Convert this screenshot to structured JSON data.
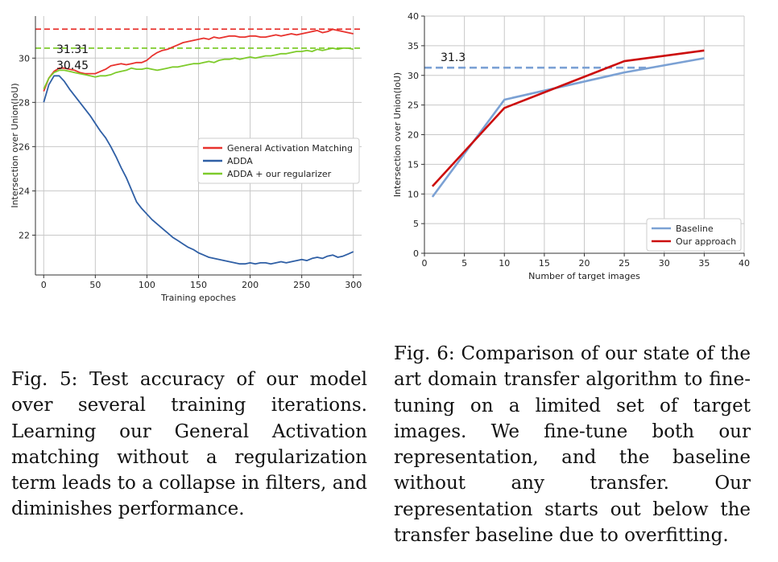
{
  "figure5": {
    "chart_data": {
      "type": "line",
      "title": "",
      "xlabel": "Training epoches",
      "ylabel": "Intersection over Union(IoU)",
      "xlim": [
        -8,
        308
      ],
      "ylim": [
        20.2,
        31.9
      ],
      "xticks": [
        0,
        50,
        100,
        150,
        200,
        250,
        300
      ],
      "yticks": [
        22,
        24,
        26,
        28,
        30
      ],
      "grid": true,
      "legend_position": "center-right",
      "series": [
        {
          "name": "General Activation Matching",
          "color": "#e8322d",
          "x": [
            0,
            5,
            10,
            15,
            20,
            25,
            30,
            35,
            40,
            45,
            50,
            55,
            60,
            65,
            70,
            75,
            80,
            85,
            90,
            95,
            100,
            105,
            110,
            115,
            120,
            125,
            130,
            135,
            140,
            145,
            150,
            155,
            160,
            165,
            170,
            175,
            180,
            185,
            190,
            195,
            200,
            205,
            210,
            215,
            220,
            225,
            230,
            235,
            240,
            245,
            250,
            255,
            260,
            265,
            270,
            275,
            280,
            285,
            290,
            295,
            300
          ],
          "values": [
            28.5,
            29.1,
            29.4,
            29.55,
            29.55,
            29.5,
            29.45,
            29.35,
            29.3,
            29.3,
            29.3,
            29.4,
            29.5,
            29.65,
            29.7,
            29.75,
            29.7,
            29.75,
            29.8,
            29.8,
            29.9,
            30.1,
            30.25,
            30.35,
            30.4,
            30.5,
            30.6,
            30.7,
            30.75,
            30.8,
            30.85,
            30.9,
            30.85,
            30.95,
            30.9,
            30.95,
            31.0,
            31.0,
            30.95,
            30.95,
            31.0,
            31.0,
            30.95,
            30.95,
            31.0,
            31.05,
            31.0,
            31.05,
            31.1,
            31.05,
            31.1,
            31.15,
            31.2,
            31.25,
            31.15,
            31.2,
            31.3,
            31.25,
            31.2,
            31.15,
            31.1
          ]
        },
        {
          "name": "ADDA",
          "color": "#2f5fa5",
          "x": [
            0,
            5,
            10,
            15,
            20,
            25,
            30,
            35,
            40,
            45,
            50,
            55,
            60,
            65,
            70,
            75,
            80,
            85,
            90,
            95,
            100,
            105,
            110,
            115,
            120,
            125,
            130,
            135,
            140,
            145,
            150,
            155,
            160,
            165,
            170,
            175,
            180,
            185,
            190,
            195,
            200,
            205,
            210,
            215,
            220,
            225,
            230,
            235,
            240,
            245,
            250,
            255,
            260,
            265,
            270,
            275,
            280,
            285,
            290,
            295,
            300
          ],
          "values": [
            28.0,
            28.8,
            29.2,
            29.2,
            28.95,
            28.6,
            28.3,
            28.0,
            27.7,
            27.4,
            27.05,
            26.7,
            26.4,
            26.0,
            25.55,
            25.05,
            24.6,
            24.05,
            23.5,
            23.2,
            22.95,
            22.7,
            22.5,
            22.3,
            22.1,
            21.9,
            21.75,
            21.6,
            21.45,
            21.35,
            21.2,
            21.1,
            21.0,
            20.95,
            20.9,
            20.85,
            20.8,
            20.75,
            20.7,
            20.7,
            20.75,
            20.7,
            20.75,
            20.75,
            20.7,
            20.75,
            20.8,
            20.75,
            20.8,
            20.85,
            20.9,
            20.85,
            20.95,
            21.0,
            20.95,
            21.05,
            21.1,
            21.0,
            21.05,
            21.15,
            21.25
          ]
        },
        {
          "name": "ADDA + our regularizer",
          "color": "#7ecb2b",
          "x": [
            0,
            5,
            10,
            15,
            20,
            25,
            30,
            35,
            40,
            45,
            50,
            55,
            60,
            65,
            70,
            75,
            80,
            85,
            90,
            95,
            100,
            105,
            110,
            115,
            120,
            125,
            130,
            135,
            140,
            145,
            150,
            155,
            160,
            165,
            170,
            175,
            180,
            185,
            190,
            195,
            200,
            205,
            210,
            215,
            220,
            225,
            230,
            235,
            240,
            245,
            250,
            255,
            260,
            265,
            270,
            275,
            280,
            285,
            290,
            295,
            300
          ],
          "values": [
            28.6,
            29.1,
            29.35,
            29.45,
            29.45,
            29.4,
            29.35,
            29.3,
            29.25,
            29.2,
            29.15,
            29.2,
            29.2,
            29.25,
            29.35,
            29.4,
            29.45,
            29.55,
            29.5,
            29.5,
            29.55,
            29.5,
            29.45,
            29.5,
            29.55,
            29.6,
            29.6,
            29.65,
            29.7,
            29.75,
            29.75,
            29.8,
            29.85,
            29.8,
            29.9,
            29.95,
            29.95,
            30.0,
            29.95,
            30.0,
            30.05,
            30.0,
            30.05,
            30.1,
            30.1,
            30.15,
            30.2,
            30.2,
            30.25,
            30.3,
            30.3,
            30.35,
            30.3,
            30.4,
            30.35,
            30.4,
            30.45,
            30.4,
            30.45,
            30.45,
            30.4
          ]
        }
      ],
      "reference_lines": [
        {
          "value": 31.31,
          "label": "31.31",
          "color": "#e8322d"
        },
        {
          "value": 30.45,
          "label": "30.45",
          "color": "#7ecb2b"
        }
      ]
    },
    "caption": "Fig. 5: Test accuracy of our model over several training iterations. Learning our General Activation matching without a regularization term leads to a collapse in filters, and diminishes performance."
  },
  "figure6": {
    "chart_data": {
      "type": "line",
      "title": "",
      "xlabel": "Number of target images",
      "ylabel": "Intersection over Union(IoU)",
      "xlim": [
        0,
        40
      ],
      "ylim": [
        0,
        40
      ],
      "xticks": [
        0,
        5,
        10,
        15,
        20,
        25,
        30,
        35,
        40
      ],
      "yticks": [
        0,
        5,
        10,
        15,
        20,
        25,
        30,
        35,
        40
      ],
      "grid": true,
      "legend_position": "lower-right",
      "series": [
        {
          "name": "Baseline",
          "color": "#7ba1d4",
          "x": [
            1,
            10,
            25,
            35
          ],
          "values": [
            9.5,
            25.9,
            30.5,
            32.9
          ]
        },
        {
          "name": "Our approach",
          "color": "#cc0d0d",
          "x": [
            1,
            10,
            25,
            35
          ],
          "values": [
            11.3,
            24.5,
            32.4,
            34.2
          ]
        }
      ],
      "reference_lines": [
        {
          "value": 31.3,
          "label": "31.3",
          "color": "#7ba1d4",
          "x_end": 28
        }
      ]
    },
    "caption": "Fig. 6: Comparison of our state of the art domain transfer algorithm to fine-tuning on a limited set of target images. We fine-tune both our representation, and the baseline without any transfer. Our representation starts out below the transfer baseline due to overfitting."
  }
}
